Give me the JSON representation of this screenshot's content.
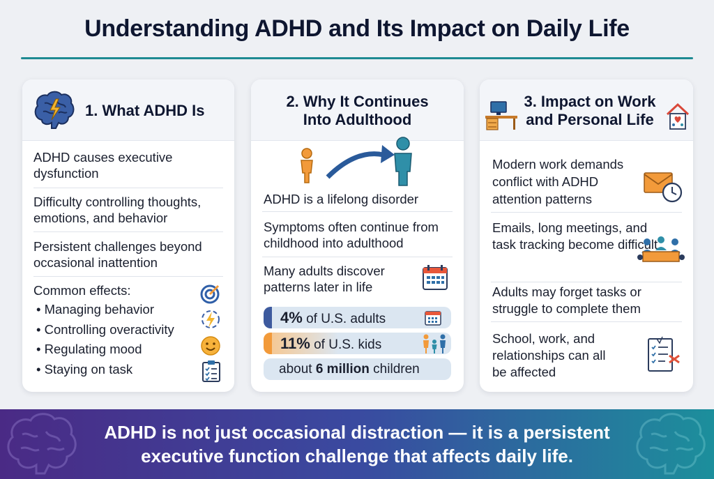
{
  "title": "Understanding ADHD and Its Impact on Daily Life",
  "card1": {
    "title": "1. What ADHD Is",
    "rows": [
      "ADHD causes executive dysfunction",
      "Difficulty controlling thoughts, emotions, and behavior",
      "Persistent challenges beyond occasional inattention"
    ],
    "effects_label": "Common effects:",
    "effects": [
      "Managing behavior",
      "Controlling overactivity",
      "Regulating mood",
      "Staying on task"
    ]
  },
  "card2": {
    "title_line1": "2. Why It Continues",
    "title_line2": "Into Adulthood",
    "rows": [
      "ADHD is a lifelong disorder",
      "Symptoms often continue from childhood into adulthood",
      "Many adults discover patterns later in life"
    ],
    "stats": [
      {
        "value": "4%",
        "label": " of U.S. adults",
        "color": "#3d5a9e"
      },
      {
        "value": "11%",
        "label": " of U.S. kids",
        "color": "#f29a3a"
      },
      {
        "prefix": "about ",
        "value": "6 million",
        "label": " children"
      }
    ]
  },
  "card3": {
    "title_line1": "3. Impact on Work",
    "title_line2": "and Personal Life",
    "rows": [
      "Modern work demands conflict with ADHD attention patterns",
      "Emails, long meetings, and task tracking become difficult",
      "Adults may forget tasks or struggle to complete them",
      "School, work, and relationships can all be affected"
    ]
  },
  "banner": {
    "line1": "ADHD is not just occasional distraction — it is a persistent",
    "line2": "executive function challenge that affects daily life."
  },
  "icons": {
    "brain": "brain-icon",
    "child_to_adult": "growth-arrow-icon",
    "desk": "desk-icon",
    "home": "home-heart-icon",
    "target": "target-icon",
    "energy": "energy-icon",
    "smile": "smile-icon",
    "checklist": "checklist-icon",
    "calendar": "calendar-icon",
    "mail": "mail-clock-icon",
    "meeting": "meeting-icon",
    "family": "family-icon",
    "task": "task-list-icon"
  },
  "colors": {
    "accent": "#1e8a92",
    "navy": "#0e1630",
    "orange": "#f29a3a",
    "blue": "#2f6fa8"
  }
}
